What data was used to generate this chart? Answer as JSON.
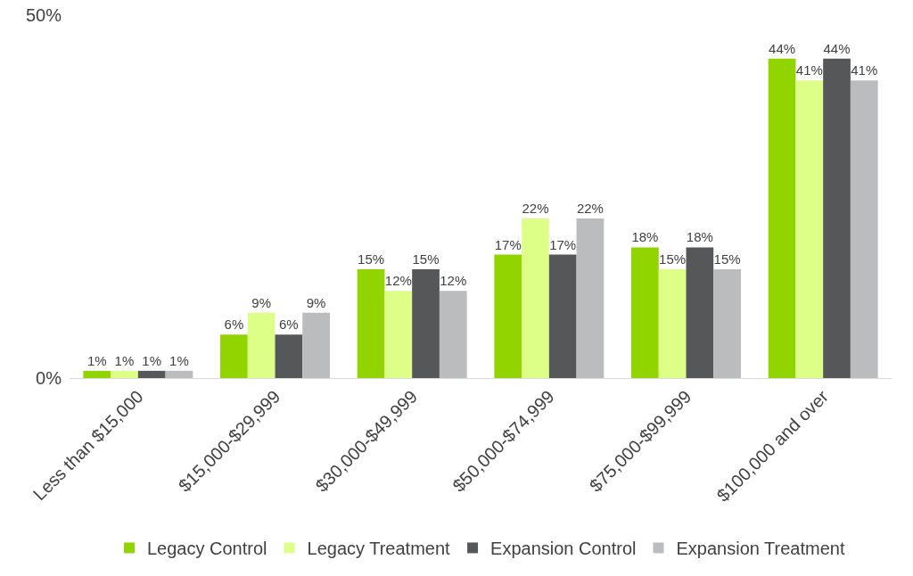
{
  "chart_data": {
    "type": "bar",
    "categories": [
      "Less than $15,000",
      "$15,000-$29,999",
      "$30,000-$49,999",
      "$50,000-$74,999",
      "$75,000-$99,999",
      "$100,000 and over"
    ],
    "series": [
      {
        "name": "Legacy Control",
        "color": "#92d400",
        "values": [
          1,
          6,
          15,
          17,
          18,
          44
        ],
        "value_labels": [
          "1%",
          "6%",
          "15%",
          "17%",
          "18%",
          "44%"
        ]
      },
      {
        "name": "Legacy Treatment",
        "color": "#ddff88",
        "values": [
          1,
          9,
          12,
          22,
          15,
          41
        ],
        "value_labels": [
          "1%",
          "9%",
          "12%",
          "22%",
          "15%",
          "41%"
        ]
      },
      {
        "name": "Expansion Control",
        "color": "#555759",
        "values": [
          1,
          6,
          15,
          17,
          18,
          44
        ],
        "value_labels": [
          "1%",
          "6%",
          "15%",
          "17%",
          "18%",
          "44%"
        ]
      },
      {
        "name": "Expansion Treatment",
        "color": "#bbbcbe",
        "values": [
          1,
          9,
          12,
          22,
          15,
          41
        ],
        "value_labels": [
          "1%",
          "9%",
          "12%",
          "22%",
          "15%",
          "41%"
        ]
      }
    ],
    "ylim": [
      0,
      50
    ],
    "yticks": [
      {
        "value": 0,
        "label": "0%"
      },
      {
        "value": 50,
        "label": "50%"
      }
    ],
    "legend": "bottom"
  }
}
